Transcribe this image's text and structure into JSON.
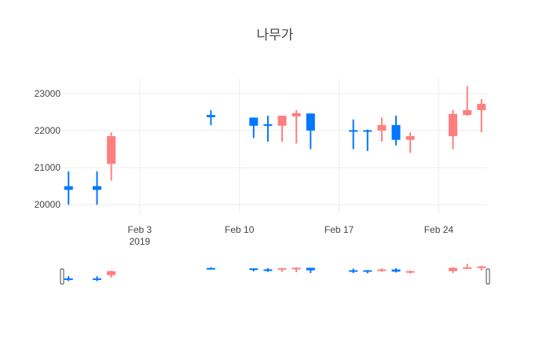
{
  "chart_data": {
    "type": "candlestick",
    "title": "나무가",
    "xlabel": "",
    "ylabel": "",
    "grid": true,
    "range_slider": true,
    "colors": {
      "increasing": "#ff7f7f",
      "decreasing": "#0077ff"
    },
    "ylim": [
      19750,
      23400
    ],
    "y_ticks": [
      20000,
      21000,
      22000,
      23000
    ],
    "x_ticks": [
      {
        "date": "2019-02-03",
        "label": "Feb 3",
        "sublabel": "2019"
      },
      {
        "date": "2019-02-10",
        "label": "Feb 10",
        "sublabel": ""
      },
      {
        "date": "2019-02-17",
        "label": "Feb 17",
        "sublabel": ""
      },
      {
        "date": "2019-02-24",
        "label": "Feb 24",
        "sublabel": ""
      }
    ],
    "candles": [
      {
        "date": "2019-01-29",
        "open": 20500,
        "high": 20900,
        "low": 20000,
        "close": 20400
      },
      {
        "date": "2019-01-31",
        "open": 20500,
        "high": 20900,
        "low": 20000,
        "close": 20400
      },
      {
        "date": "2019-02-01",
        "open": 21100,
        "high": 21950,
        "low": 20650,
        "close": 21850
      },
      {
        "date": "2019-02-08",
        "open": 22420,
        "high": 22550,
        "low": 22150,
        "close": 22360
      },
      {
        "date": "2019-02-11",
        "open": 22350,
        "high": 22350,
        "low": 21800,
        "close": 22130
      },
      {
        "date": "2019-02-12",
        "open": 22170,
        "high": 22400,
        "low": 21700,
        "close": 22130
      },
      {
        "date": "2019-02-13",
        "open": 22130,
        "high": 22400,
        "low": 21700,
        "close": 22400
      },
      {
        "date": "2019-02-14",
        "open": 22380,
        "high": 22550,
        "low": 21650,
        "close": 22470
      },
      {
        "date": "2019-02-15",
        "open": 22460,
        "high": 22460,
        "low": 21500,
        "close": 22000
      },
      {
        "date": "2019-02-18",
        "open": 22010,
        "high": 22300,
        "low": 21500,
        "close": 21980
      },
      {
        "date": "2019-02-19",
        "open": 22010,
        "high": 22030,
        "low": 21450,
        "close": 21980
      },
      {
        "date": "2019-02-20",
        "open": 22000,
        "high": 22350,
        "low": 21700,
        "close": 22150
      },
      {
        "date": "2019-02-21",
        "open": 22150,
        "high": 22400,
        "low": 21600,
        "close": 21750
      },
      {
        "date": "2019-02-22",
        "open": 21750,
        "high": 21950,
        "low": 21400,
        "close": 21850
      },
      {
        "date": "2019-02-25",
        "open": 21850,
        "high": 22550,
        "low": 21500,
        "close": 22450
      },
      {
        "date": "2019-02-26",
        "open": 22420,
        "high": 23200,
        "low": 22400,
        "close": 22550
      },
      {
        "date": "2019-02-27",
        "open": 22550,
        "high": 22850,
        "low": 21950,
        "close": 22720
      }
    ]
  }
}
